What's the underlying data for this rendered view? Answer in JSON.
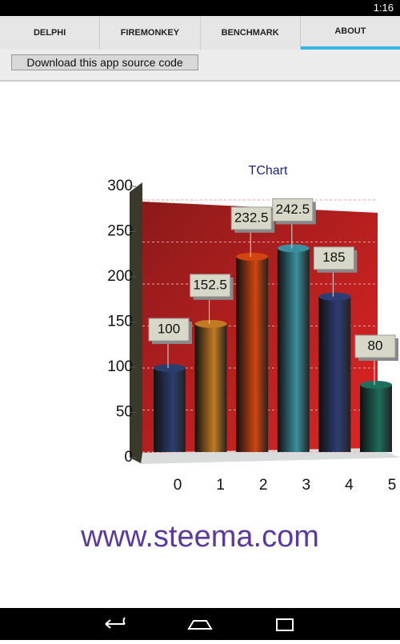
{
  "status_bar": {
    "time": "1:16"
  },
  "tabs": [
    "DELPHI",
    "FIREMONKEY",
    "BENCHMARK",
    "ABOUT"
  ],
  "download_button": "Download this app source code",
  "chart_data": {
    "type": "bar",
    "title": "TChart",
    "categories": [
      "0",
      "1",
      "2",
      "3",
      "4",
      "5"
    ],
    "values": [
      100,
      152.5,
      232.5,
      242.5,
      185,
      80
    ],
    "colors": [
      "#2b3f6e",
      "#c27a22",
      "#d2450f",
      "#3a8fa0",
      "#2e3e74",
      "#1d6e5c"
    ],
    "ylim": [
      0,
      300
    ],
    "yticks": [
      0,
      50,
      100,
      150,
      200,
      250,
      300
    ],
    "grid": true
  },
  "footer_link": "www.steema.com"
}
